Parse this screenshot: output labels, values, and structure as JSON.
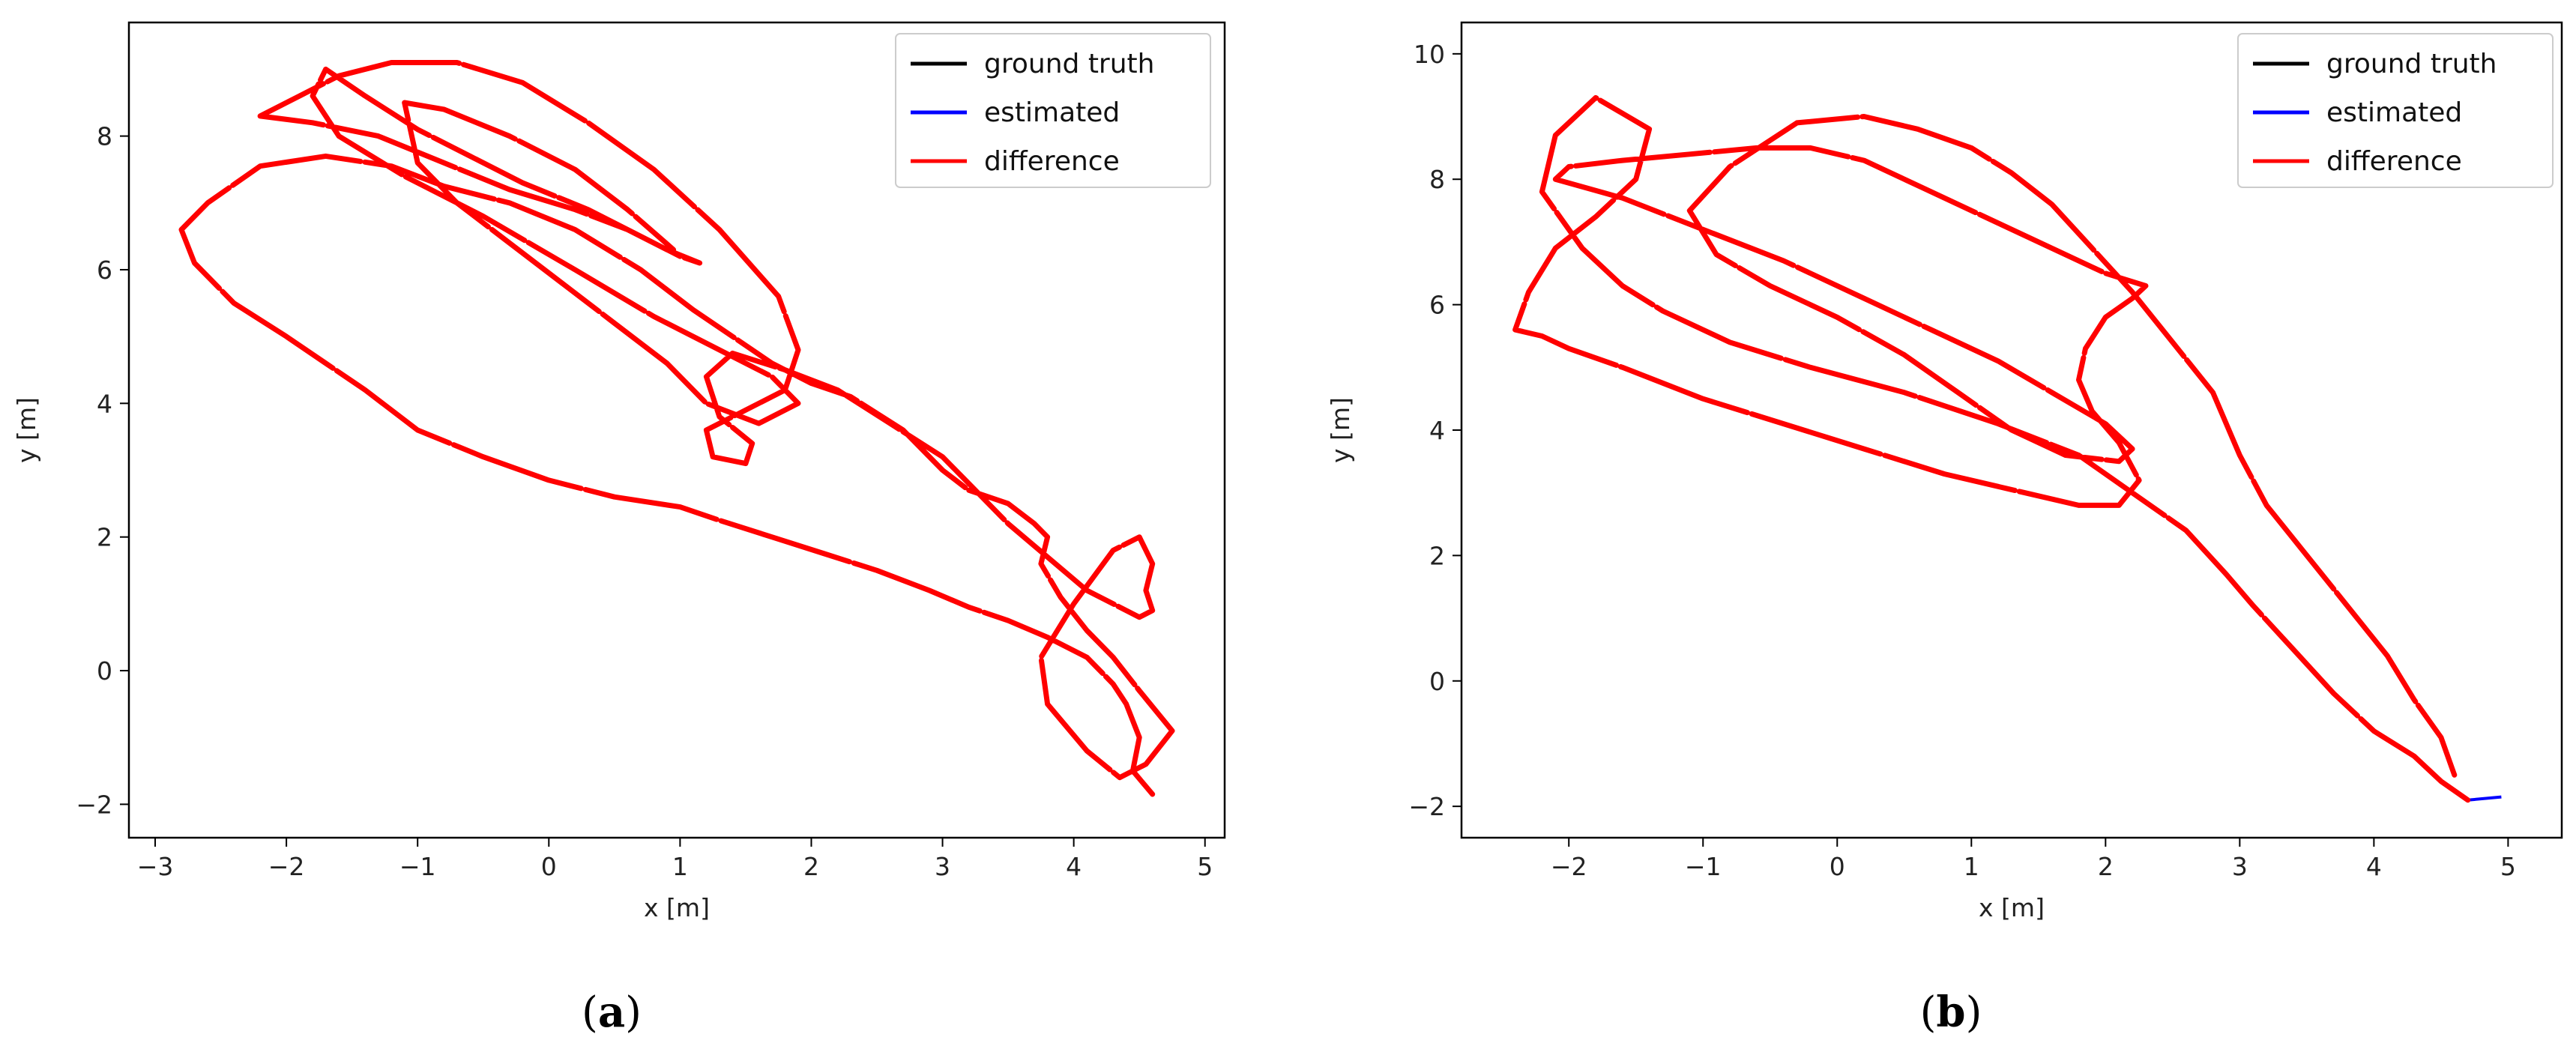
{
  "chart_data": [
    {
      "type": "line",
      "caption_letter": "a",
      "xlabel": "x [m]",
      "ylabel": "y [m]",
      "xlim": [
        -3.2,
        5.15
      ],
      "ylim": [
        -2.5,
        9.7
      ],
      "xticks": [
        -3,
        -2,
        -1,
        0,
        1,
        2,
        3,
        4,
        5
      ],
      "yticks": [
        -2,
        0,
        2,
        4,
        6,
        8
      ],
      "tick_labels_x": [
        "−3",
        "−2",
        "−1",
        "0",
        "1",
        "2",
        "3",
        "4",
        "5"
      ],
      "tick_labels_y": [
        "−2",
        "0",
        "2",
        "4",
        "6",
        "8"
      ],
      "legend_position": "top-right",
      "series": [
        {
          "name": "ground truth",
          "color": "#000000"
        },
        {
          "name": "estimated",
          "color": "#0000ff"
        },
        {
          "name": "difference",
          "color": "#ff0000"
        }
      ],
      "trajectory": {
        "x": [
          4.6,
          4.45,
          4.5,
          4.4,
          4.3,
          4.1,
          3.8,
          3.5,
          3.2,
          2.9,
          2.5,
          2.1,
          1.7,
          1.3,
          1.0,
          0.5,
          0.0,
          -0.5,
          -1.0,
          -1.4,
          -1.7,
          -2.0,
          -2.4,
          -2.7,
          -2.8,
          -2.6,
          -2.2,
          -1.7,
          -1.2,
          -0.8,
          -0.3,
          0.2,
          0.7,
          1.1,
          1.4,
          1.7,
          2.0,
          2.3,
          2.7,
          3.0,
          3.2,
          3.5,
          3.7,
          3.8,
          3.75,
          3.9,
          4.1,
          4.3,
          4.5,
          4.75,
          4.55,
          4.35,
          4.1,
          3.8,
          3.75,
          4.0,
          4.3,
          4.5,
          4.6,
          4.55,
          4.6,
          4.5,
          4.1,
          3.8,
          3.5,
          3.2,
          3.0,
          2.6,
          2.2,
          1.8,
          1.4,
          1.2,
          1.3,
          1.55,
          1.5,
          1.25,
          1.2,
          1.4,
          1.8,
          1.9,
          1.75,
          1.3,
          0.8,
          0.3,
          -0.2,
          -0.7,
          -1.2,
          -1.6,
          -1.9,
          -2.2,
          -1.8,
          -1.3,
          -0.8,
          -0.3,
          0.2,
          0.6,
          0.9,
          1.15,
          1.0,
          0.7,
          0.3,
          -0.2,
          -0.6,
          -1.0,
          -1.4,
          -1.7,
          -1.8,
          -1.6,
          -1.1,
          -0.5,
          0.2,
          0.8,
          1.3,
          1.7,
          1.9,
          1.6,
          1.2,
          0.9,
          0.5,
          0.1,
          -0.3,
          -0.7,
          -1.0,
          -1.1,
          -0.8,
          -0.3,
          0.2,
          0.6,
          0.95
        ],
        "y": [
          -1.85,
          -1.5,
          -1.0,
          -0.5,
          -0.2,
          0.2,
          0.5,
          0.75,
          0.95,
          1.2,
          1.5,
          1.75,
          2.0,
          2.25,
          2.45,
          2.6,
          2.85,
          3.2,
          3.6,
          4.2,
          4.6,
          5.0,
          5.5,
          6.1,
          6.6,
          7.0,
          7.55,
          7.7,
          7.55,
          7.25,
          7.0,
          6.6,
          6.0,
          5.4,
          5.0,
          4.6,
          4.3,
          4.1,
          3.6,
          3.0,
          2.7,
          2.5,
          2.2,
          2.0,
          1.6,
          1.1,
          0.6,
          0.2,
          -0.3,
          -0.9,
          -1.4,
          -1.6,
          -1.2,
          -0.5,
          0.2,
          1.0,
          1.8,
          2.0,
          1.6,
          1.2,
          0.9,
          0.8,
          1.2,
          1.7,
          2.2,
          2.8,
          3.2,
          3.7,
          4.2,
          4.5,
          4.75,
          4.4,
          3.8,
          3.4,
          3.1,
          3.2,
          3.6,
          3.8,
          4.2,
          4.8,
          5.6,
          6.6,
          7.5,
          8.2,
          8.8,
          9.1,
          9.1,
          8.9,
          8.6,
          8.3,
          8.2,
          8.0,
          7.6,
          7.2,
          6.9,
          6.6,
          6.3,
          6.1,
          6.2,
          6.5,
          6.9,
          7.3,
          7.7,
          8.1,
          8.6,
          9.0,
          8.6,
          8.0,
          7.4,
          6.8,
          6.0,
          5.3,
          4.8,
          4.4,
          4.0,
          3.7,
          4.0,
          4.6,
          5.2,
          5.8,
          6.4,
          7.0,
          7.6,
          8.5,
          8.4,
          8.0,
          7.5,
          6.9,
          6.3
        ]
      }
    },
    {
      "type": "line",
      "caption_letter": "b",
      "xlabel": "x [m]",
      "ylabel": "y [m]",
      "xlim": [
        -2.8,
        5.4
      ],
      "ylim": [
        -2.5,
        10.5
      ],
      "xticks": [
        -2,
        -1,
        0,
        1,
        2,
        3,
        4,
        5
      ],
      "yticks": [
        -2,
        0,
        2,
        4,
        6,
        8,
        10
      ],
      "tick_labels_x": [
        "−2",
        "−1",
        "0",
        "1",
        "2",
        "3",
        "4",
        "5"
      ],
      "tick_labels_y": [
        "−2",
        "0",
        "2",
        "4",
        "6",
        "8",
        "10"
      ],
      "legend_position": "top-right",
      "series": [
        {
          "name": "ground truth",
          "color": "#000000"
        },
        {
          "name": "estimated",
          "color": "#0000ff"
        },
        {
          "name": "difference",
          "color": "#ff0000"
        }
      ],
      "estimated_tail": {
        "x": [
          4.7,
          4.95
        ],
        "y": [
          -1.9,
          -1.85
        ]
      },
      "trajectory": {
        "x": [
          4.7,
          4.5,
          4.3,
          4.0,
          3.7,
          3.4,
          3.1,
          2.9,
          2.6,
          2.2,
          1.8,
          1.2,
          0.5,
          -0.2,
          -0.8,
          -1.3,
          -1.6,
          -1.9,
          -2.2,
          -2.1,
          -1.8,
          -1.4,
          -1.5,
          -1.8,
          -2.1,
          -2.3,
          -2.4,
          -2.2,
          -2.0,
          -1.6,
          -1.0,
          -0.4,
          0.2,
          0.8,
          1.4,
          1.8,
          2.1,
          2.25,
          2.1,
          1.9,
          1.8,
          1.85,
          2.0,
          2.2,
          2.3,
          2.0,
          1.6,
          1.2,
          0.8,
          0.5,
          0.2,
          -0.2,
          -0.6,
          -1.1,
          -1.6,
          -2.0,
          -2.1,
          -1.6,
          -1.0,
          -0.4,
          0.2,
          0.7,
          1.2,
          1.6,
          2.0,
          2.2,
          2.1,
          1.7,
          1.3,
          0.9,
          0.5,
          0.0,
          -0.5,
          -0.9,
          -1.1,
          -0.8,
          -0.3,
          0.2,
          0.6,
          1.0,
          1.3,
          1.6,
          1.9,
          2.2,
          2.5,
          2.8,
          3.0,
          3.2,
          3.5,
          3.8,
          4.1,
          4.3,
          4.5,
          4.6
        ],
        "y": [
          -1.9,
          -1.6,
          -1.2,
          -0.8,
          -0.2,
          0.5,
          1.2,
          1.7,
          2.4,
          3.0,
          3.6,
          4.1,
          4.6,
          5.0,
          5.4,
          5.9,
          6.3,
          6.9,
          7.8,
          8.7,
          9.3,
          8.8,
          8.0,
          7.4,
          6.9,
          6.2,
          5.6,
          5.5,
          5.3,
          5.0,
          4.5,
          4.1,
          3.7,
          3.3,
          3.0,
          2.8,
          2.8,
          3.2,
          3.8,
          4.3,
          4.8,
          5.3,
          5.8,
          6.1,
          6.3,
          6.5,
          6.9,
          7.3,
          7.7,
          8.0,
          8.3,
          8.5,
          8.5,
          8.4,
          8.3,
          8.2,
          8.0,
          7.7,
          7.2,
          6.7,
          6.1,
          5.6,
          5.1,
          4.6,
          4.1,
          3.7,
          3.5,
          3.6,
          4.0,
          4.6,
          5.2,
          5.8,
          6.3,
          6.8,
          7.5,
          8.2,
          8.9,
          9.0,
          8.8,
          8.5,
          8.1,
          7.6,
          6.9,
          6.2,
          5.4,
          4.6,
          3.6,
          2.8,
          2.0,
          1.2,
          0.4,
          -0.3,
          -0.9,
          -1.5
        ]
      }
    }
  ]
}
